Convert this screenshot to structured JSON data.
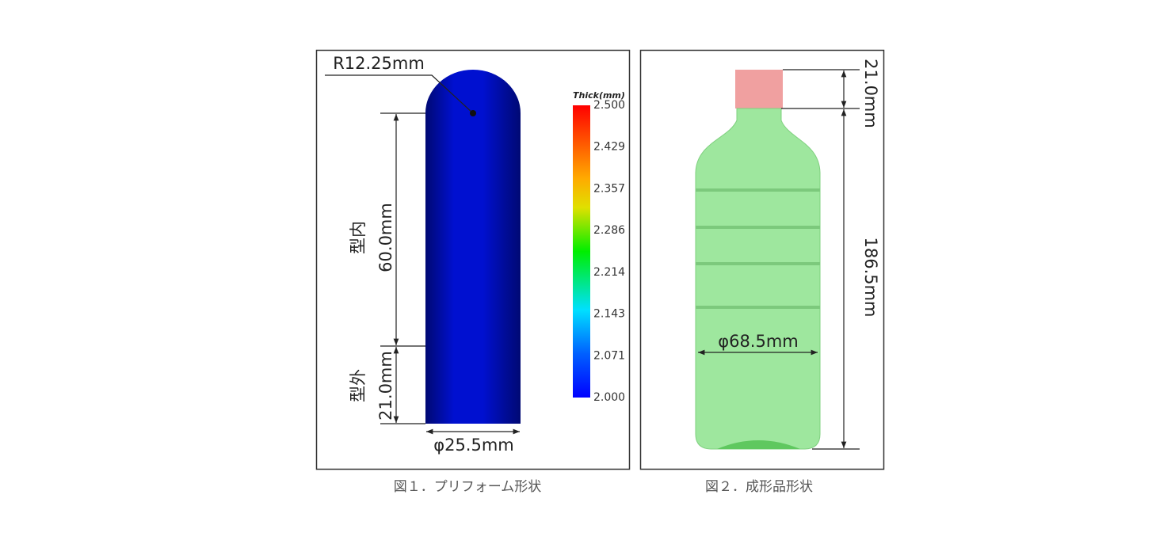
{
  "figures": [
    {
      "radius_label": "R12.25mm",
      "in_mold_length": "60.0mm",
      "in_mold_label": "型内",
      "out_mold_length": "21.0mm",
      "out_mold_label": "型外",
      "diameter": "φ25.5mm",
      "colorbar": {
        "title": "Thick(mm)",
        "ticks": [
          "2.500",
          "2.429",
          "2.357",
          "2.286",
          "2.214",
          "2.143",
          "2.071",
          "2.000"
        ]
      },
      "caption": "図１．プリフォーム形状"
    },
    {
      "neck_length": "21.0mm",
      "body_length": "186.5mm",
      "diameter": "φ68.5mm",
      "caption": "図２．成形品形状"
    }
  ]
}
